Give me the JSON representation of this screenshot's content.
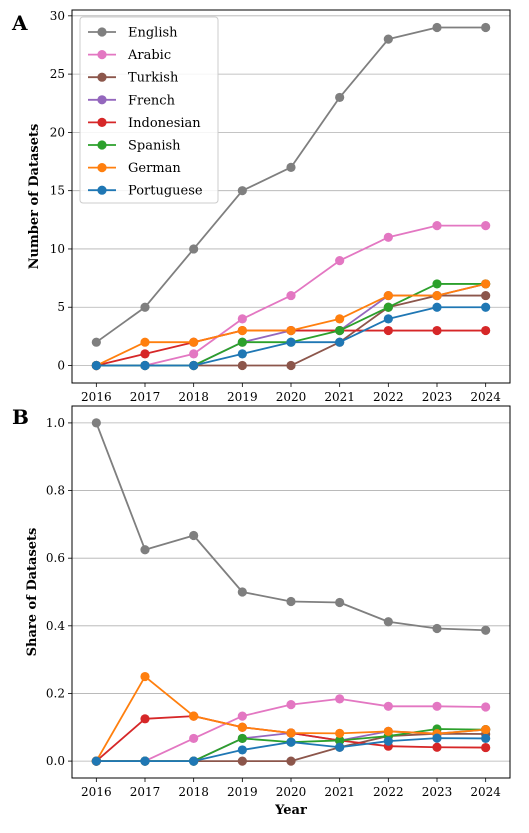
{
  "chart_data": [
    {
      "type": "line",
      "panel_label": "A",
      "ylabel": "Number of Datasets",
      "xlabel": "",
      "x": [
        2016,
        2017,
        2018,
        2019,
        2020,
        2021,
        2022,
        2023,
        2024
      ],
      "xlim": [
        2015.5,
        2024.5
      ],
      "ylim": [
        -1.5,
        30.5
      ],
      "yticks": [
        0,
        5,
        10,
        15,
        20,
        25,
        30
      ],
      "grid": "horizontal",
      "legend_position": "top-left",
      "series": [
        {
          "name": "English",
          "color": "#7f7f7f",
          "values": [
            2,
            5,
            10,
            15,
            17,
            23,
            28,
            29,
            29
          ]
        },
        {
          "name": "Arabic",
          "color": "#e377c2",
          "values": [
            0,
            0,
            1,
            4,
            6,
            9,
            11,
            12,
            12
          ]
        },
        {
          "name": "Turkish",
          "color": "#8c564b",
          "values": [
            0,
            0,
            0,
            0,
            0,
            2,
            5,
            6,
            6
          ]
        },
        {
          "name": "French",
          "color": "#9467bd",
          "values": [
            0,
            0,
            0,
            2,
            3,
            3,
            6,
            6,
            7
          ]
        },
        {
          "name": "Indonesian",
          "color": "#d62728",
          "values": [
            0,
            1,
            2,
            3,
            3,
            3,
            3,
            3,
            3
          ]
        },
        {
          "name": "Spanish",
          "color": "#2ca02c",
          "values": [
            0,
            0,
            0,
            2,
            2,
            3,
            5,
            7,
            7
          ]
        },
        {
          "name": "German",
          "color": "#ff7f0e",
          "values": [
            0,
            2,
            2,
            3,
            3,
            4,
            6,
            6,
            7
          ]
        },
        {
          "name": "Portuguese",
          "color": "#1f77b4",
          "values": [
            0,
            0,
            0,
            1,
            2,
            2,
            4,
            5,
            5
          ]
        }
      ]
    },
    {
      "type": "line",
      "panel_label": "B",
      "ylabel": "Share of Datasets",
      "xlabel": "Year",
      "x": [
        2016,
        2017,
        2018,
        2019,
        2020,
        2021,
        2022,
        2023,
        2024
      ],
      "xlim": [
        2015.5,
        2024.5
      ],
      "ylim": [
        -0.05,
        1.05
      ],
      "yticks": [
        "0.0",
        "0.2",
        "0.4",
        "0.6",
        "0.8",
        "1.0"
      ],
      "grid": "horizontal",
      "series": [
        {
          "name": "English",
          "color": "#7f7f7f",
          "values": [
            1.0,
            0.625,
            0.667,
            0.5,
            0.472,
            0.469,
            0.412,
            0.392,
            0.387
          ]
        },
        {
          "name": "Arabic",
          "color": "#e377c2",
          "values": [
            0,
            0,
            0.067,
            0.133,
            0.167,
            0.184,
            0.162,
            0.162,
            0.16
          ]
        },
        {
          "name": "Turkish",
          "color": "#8c564b",
          "values": [
            0,
            0,
            0,
            0,
            0,
            0.041,
            0.074,
            0.081,
            0.08
          ]
        },
        {
          "name": "French",
          "color": "#9467bd",
          "values": [
            0,
            0,
            0,
            0.067,
            0.083,
            0.061,
            0.088,
            0.081,
            0.093
          ]
        },
        {
          "name": "Indonesian",
          "color": "#d62728",
          "values": [
            0,
            0.125,
            0.133,
            0.1,
            0.083,
            0.061,
            0.044,
            0.041,
            0.04
          ]
        },
        {
          "name": "Spanish",
          "color": "#2ca02c",
          "values": [
            0,
            0,
            0,
            0.067,
            0.056,
            0.061,
            0.074,
            0.095,
            0.093
          ]
        },
        {
          "name": "German",
          "color": "#ff7f0e",
          "values": [
            0,
            0.25,
            0.133,
            0.1,
            0.083,
            0.082,
            0.088,
            0.081,
            0.093
          ]
        },
        {
          "name": "Portuguese",
          "color": "#1f77b4",
          "values": [
            0,
            0,
            0,
            0.033,
            0.056,
            0.041,
            0.059,
            0.068,
            0.067
          ]
        }
      ]
    }
  ]
}
